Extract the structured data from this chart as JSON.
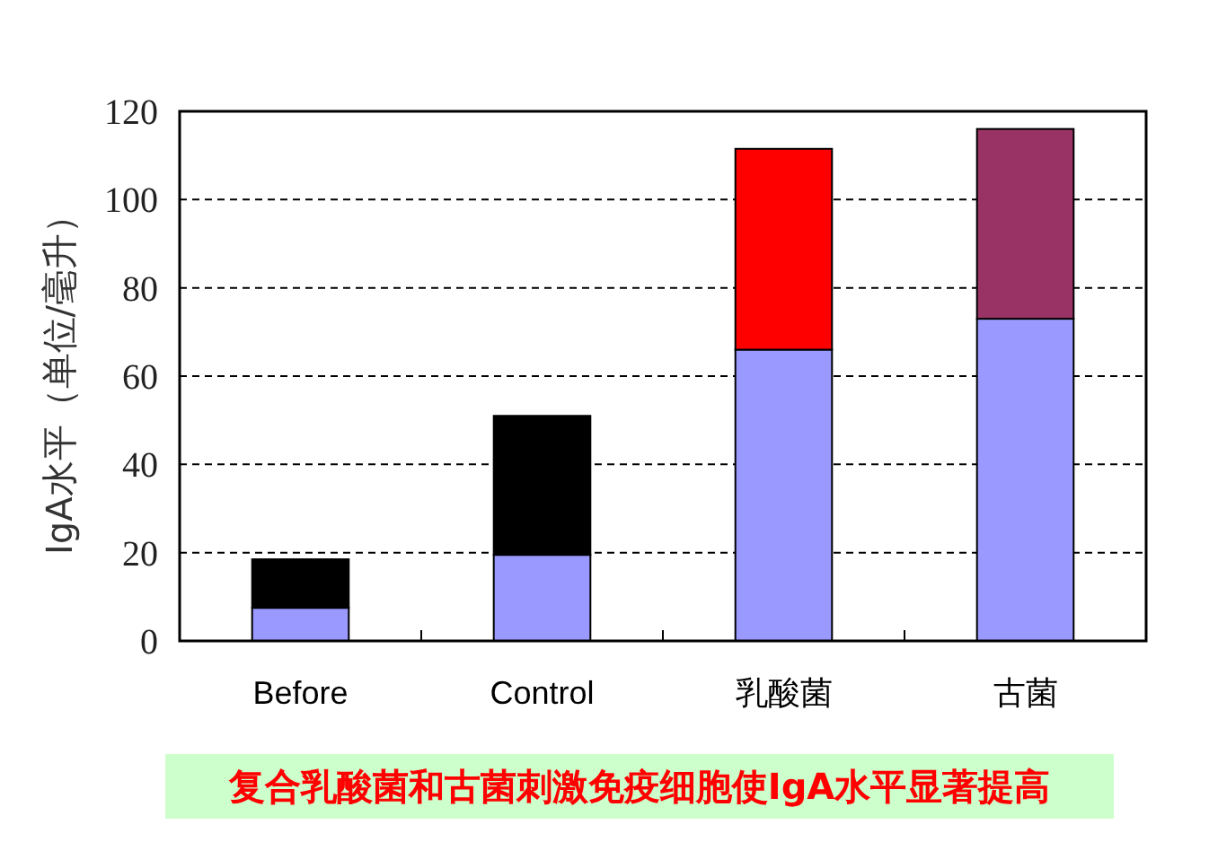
{
  "chart_data": {
    "type": "bar",
    "title": "复合乳酸菌和古菌刺激免疫细胞使IgA水平显著提高",
    "ylabel": "IgA水平（单位/毫升）",
    "categories": [
      "Before",
      "Control",
      "乳酸菌",
      "古菌"
    ],
    "stacked": true,
    "series": [
      {
        "colors": [
          "#9999ff",
          "#9999ff",
          "#9999ff",
          "#9999ff"
        ],
        "values": [
          7.5,
          19.5,
          66,
          73
        ]
      },
      {
        "colors": [
          "#000000",
          "#000000",
          "#ff0000",
          "#993366"
        ],
        "values": [
          11,
          31.5,
          45.5,
          43
        ]
      }
    ],
    "ylim": [
      0,
      120
    ],
    "yticks": [
      0,
      20,
      40,
      60,
      80,
      100,
      120
    ],
    "grid": "y"
  }
}
